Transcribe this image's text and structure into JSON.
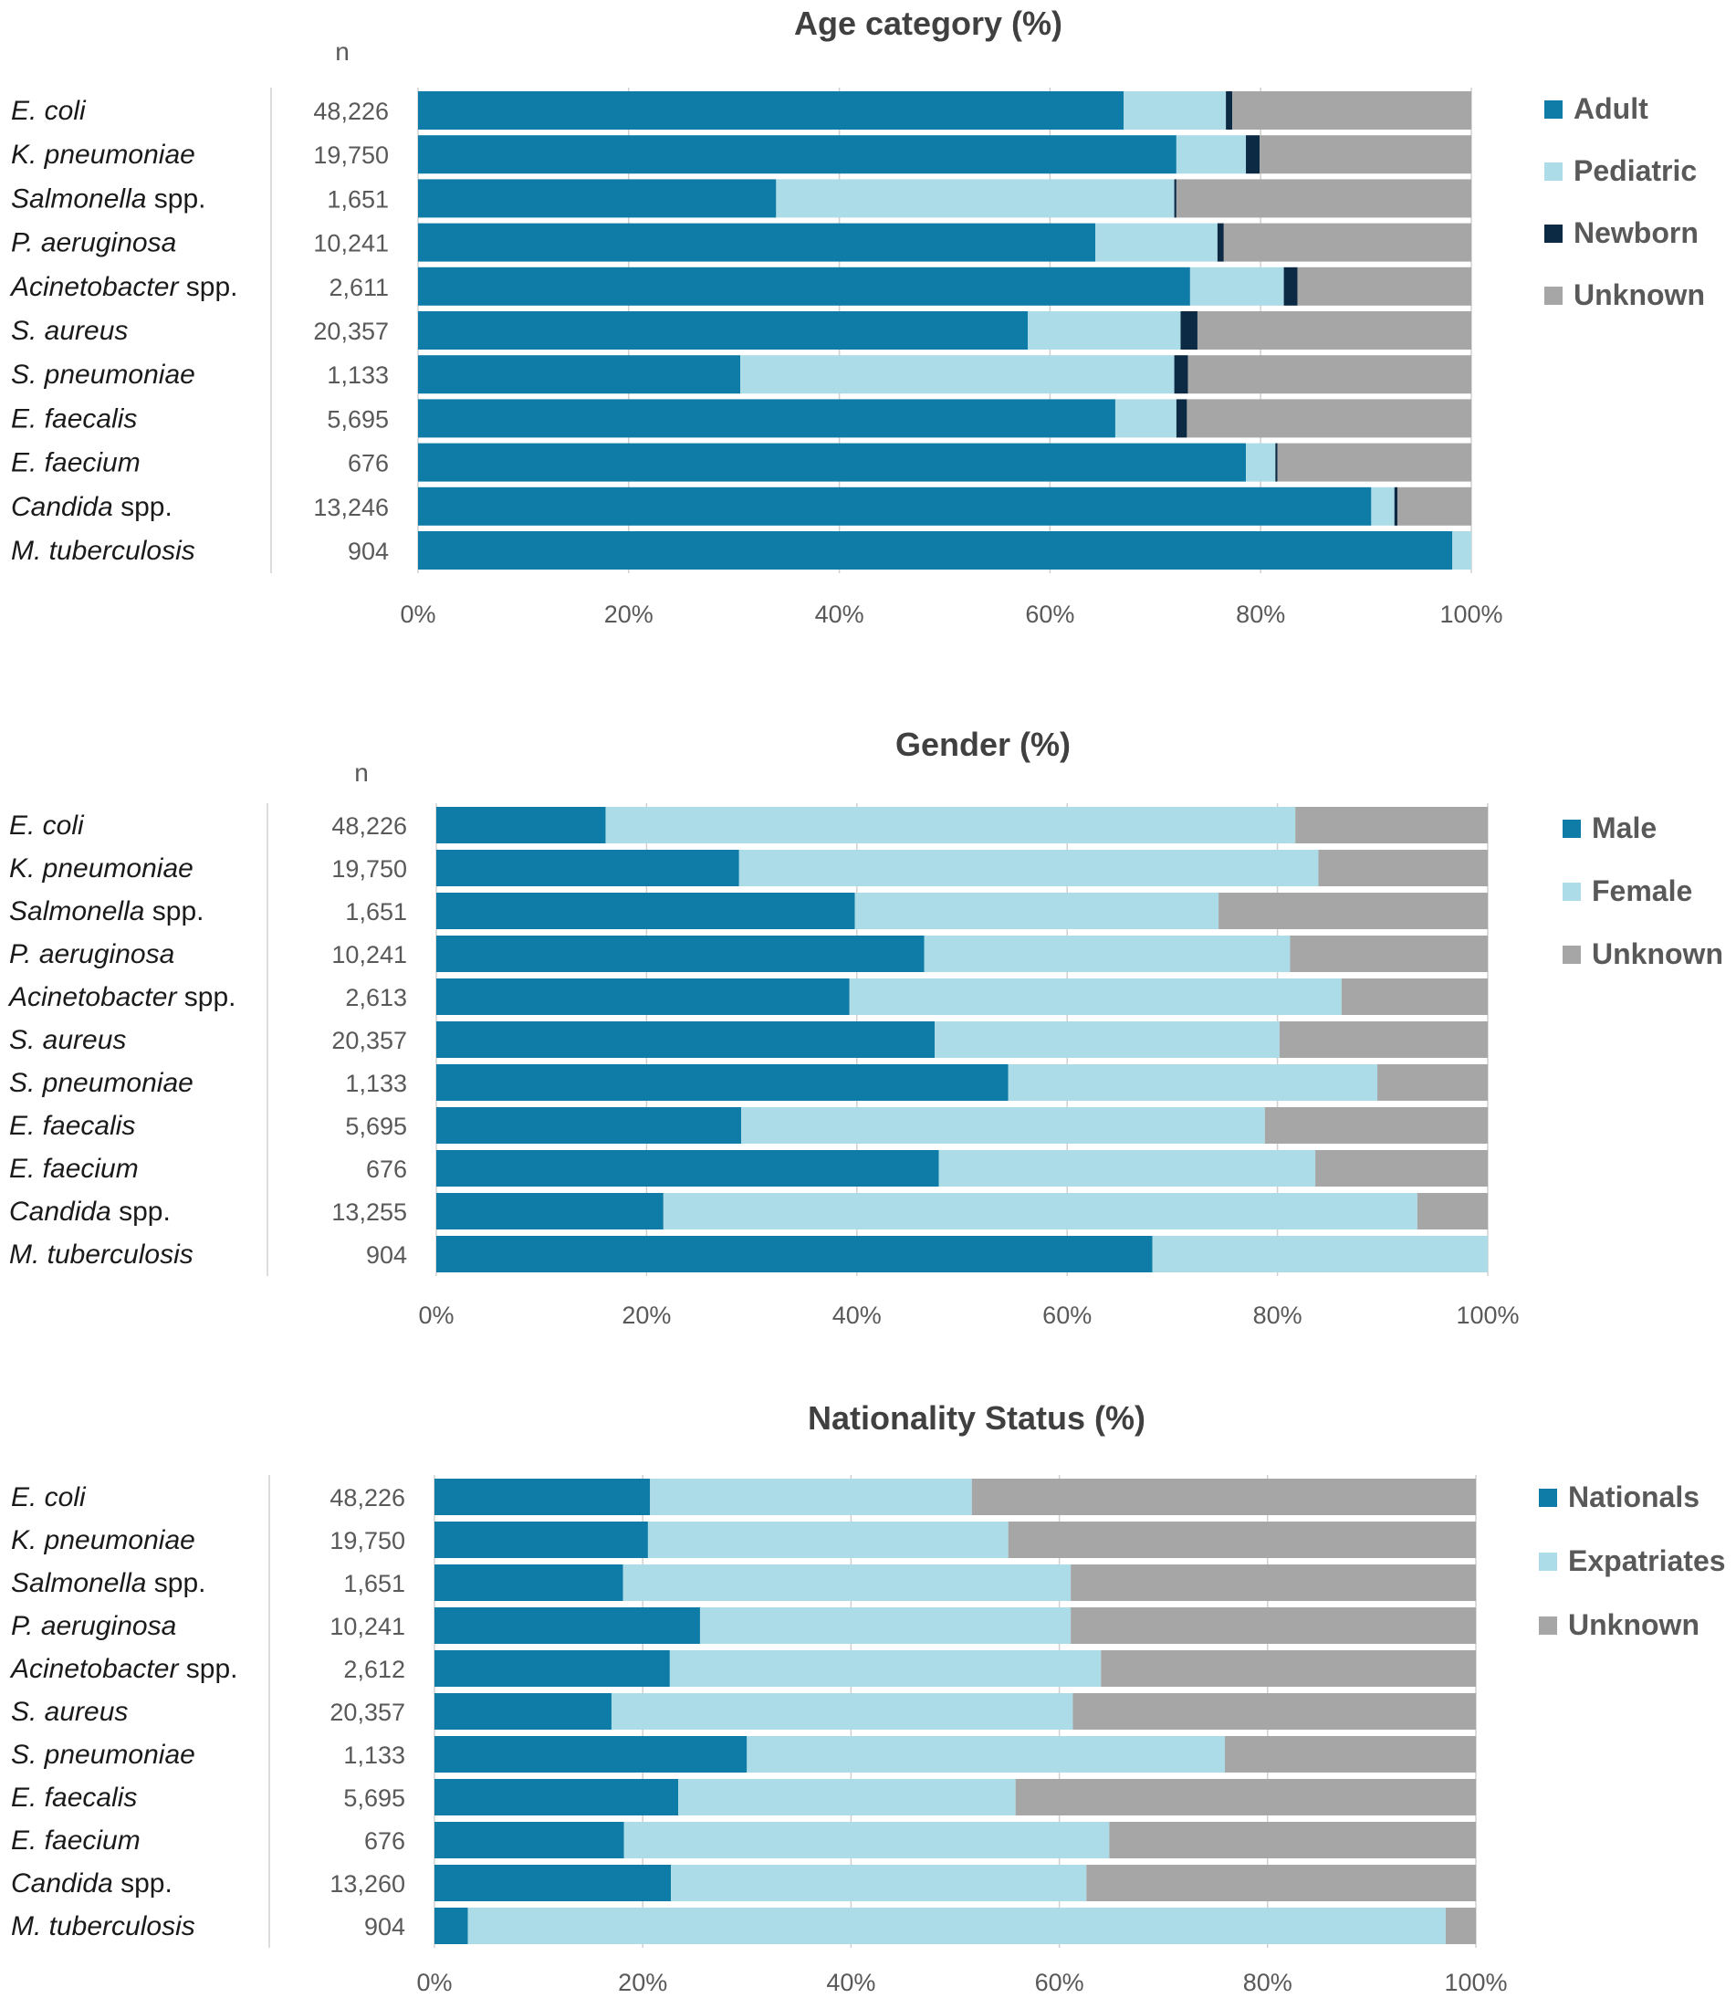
{
  "colors": {
    "dark_blue": "#0e7ca6",
    "light_blue": "#acdce7",
    "navy": "#0d2a45",
    "gray": "#a6a6a6",
    "gridline": "#d0d0d0",
    "axis_text": "#595959",
    "title_text": "#404040",
    "label_text": "#1a1a1a"
  },
  "chart_data": [
    {
      "type": "bar",
      "orientation": "horizontal",
      "stacked": "percent",
      "title": "Age category (%)",
      "n_header": "n",
      "categories": [
        {
          "pre": "E. coli",
          "post": ""
        },
        {
          "pre": "K. pneumoniae",
          "post": ""
        },
        {
          "pre": "Salmonella",
          "post": " spp."
        },
        {
          "pre": "P. aeruginosa",
          "post": ""
        },
        {
          "pre": "Acinetobacter",
          "post": " spp."
        },
        {
          "pre": "S. aureus",
          "post": ""
        },
        {
          "pre": "S. pneumoniae",
          "post": ""
        },
        {
          "pre": "E. faecalis",
          "post": ""
        },
        {
          "pre": "E. faecium",
          "post": ""
        },
        {
          "pre": "Candida",
          "post": " spp."
        },
        {
          "pre": "M. tuberculosis",
          "post": ""
        }
      ],
      "n": [
        "48,226",
        "19,750",
        "1,651",
        "10,241",
        "2,611",
        "20,357",
        "1,133",
        "5,695",
        "676",
        "13,246",
        "904"
      ],
      "series": [
        {
          "name": "Adult",
          "color_key": "dark_blue",
          "values": [
            67.0,
            72.0,
            34.0,
            64.3,
            73.3,
            57.9,
            30.6,
            66.2,
            78.6,
            90.5,
            98.2
          ]
        },
        {
          "name": "Pediatric",
          "color_key": "light_blue",
          "values": [
            9.7,
            6.6,
            37.8,
            11.6,
            8.9,
            14.5,
            41.2,
            5.8,
            2.8,
            2.2,
            1.8
          ]
        },
        {
          "name": "Newborn",
          "color_key": "navy",
          "values": [
            0.6,
            1.3,
            0.2,
            0.6,
            1.3,
            1.6,
            1.3,
            1.0,
            0.2,
            0.3,
            0.0
          ]
        },
        {
          "name": "Unknown",
          "color_key": "gray",
          "values": [
            22.7,
            20.1,
            28.0,
            23.5,
            16.5,
            26.0,
            26.9,
            27.0,
            18.4,
            7.0,
            0.0
          ]
        }
      ],
      "xlim": [
        0,
        100
      ],
      "x_ticks": [
        "0%",
        "20%",
        "40%",
        "60%",
        "80%",
        "100%"
      ],
      "legend": "right"
    },
    {
      "type": "bar",
      "orientation": "horizontal",
      "stacked": "percent",
      "title": "Gender (%)",
      "n_header": "n",
      "categories": [
        {
          "pre": "E. coli",
          "post": ""
        },
        {
          "pre": "K. pneumoniae",
          "post": ""
        },
        {
          "pre": "Salmonella",
          "post": " spp."
        },
        {
          "pre": "P. aeruginosa",
          "post": ""
        },
        {
          "pre": "Acinetobacter",
          "post": " spp."
        },
        {
          "pre": "S. aureus",
          "post": ""
        },
        {
          "pre": "S. pneumoniae",
          "post": ""
        },
        {
          "pre": "E. faecalis",
          "post": ""
        },
        {
          "pre": "E. faecium",
          "post": ""
        },
        {
          "pre": "Candida",
          "post": " spp."
        },
        {
          "pre": "M. tuberculosis",
          "post": ""
        }
      ],
      "n": [
        "48,226",
        "19,750",
        "1,651",
        "10,241",
        "2,613",
        "20,357",
        "1,133",
        "5,695",
        "676",
        "13,255",
        "904"
      ],
      "series": [
        {
          "name": "Male",
          "color_key": "dark_blue",
          "values": [
            16.1,
            28.8,
            39.8,
            46.4,
            39.3,
            47.4,
            54.4,
            29.0,
            47.8,
            21.6,
            68.1
          ]
        },
        {
          "name": "Female",
          "color_key": "light_blue",
          "values": [
            65.6,
            55.1,
            34.6,
            34.8,
            46.8,
            32.8,
            35.1,
            49.8,
            35.8,
            71.7,
            31.9
          ]
        },
        {
          "name": "Unknown",
          "color_key": "gray",
          "values": [
            18.3,
            16.1,
            25.6,
            18.8,
            13.9,
            19.8,
            10.5,
            21.2,
            16.4,
            6.7,
            0.0
          ]
        }
      ],
      "xlim": [
        0,
        100
      ],
      "x_ticks": [
        "0%",
        "20%",
        "40%",
        "60%",
        "80%",
        "100%"
      ],
      "legend": "right"
    },
    {
      "type": "bar",
      "orientation": "horizontal",
      "stacked": "percent",
      "title": "Nationality Status (%)",
      "n_header": "",
      "categories": [
        {
          "pre": "E. coli",
          "post": ""
        },
        {
          "pre": "K. pneumoniae",
          "post": ""
        },
        {
          "pre": "Salmonella",
          "post": " spp."
        },
        {
          "pre": "P. aeruginosa",
          "post": ""
        },
        {
          "pre": "Acinetobacter",
          "post": " spp."
        },
        {
          "pre": "S. aureus",
          "post": ""
        },
        {
          "pre": "S. pneumoniae",
          "post": ""
        },
        {
          "pre": "E. faecalis",
          "post": ""
        },
        {
          "pre": "E. faecium",
          "post": ""
        },
        {
          "pre": "Candida",
          "post": " spp."
        },
        {
          "pre": "M. tuberculosis",
          "post": ""
        }
      ],
      "n": [
        "48,226",
        "19,750",
        "1,651",
        "10,241",
        "2,612",
        "20,357",
        "1,133",
        "5,695",
        "676",
        "13,260",
        "904"
      ],
      "series": [
        {
          "name": "Nationals",
          "color_key": "dark_blue",
          "values": [
            20.7,
            20.5,
            18.1,
            25.5,
            22.6,
            17.0,
            30.0,
            23.4,
            18.2,
            22.7,
            3.2
          ]
        },
        {
          "name": "Expatriates",
          "color_key": "light_blue",
          "values": [
            30.9,
            34.6,
            43.0,
            35.6,
            41.4,
            44.3,
            45.9,
            32.4,
            46.6,
            39.9,
            93.9
          ]
        },
        {
          "name": "Unknown",
          "color_key": "gray",
          "values": [
            48.4,
            44.9,
            38.9,
            38.9,
            36.0,
            38.7,
            24.1,
            44.2,
            35.2,
            37.4,
            2.9
          ]
        }
      ],
      "xlim": [
        0,
        100
      ],
      "x_ticks": [
        "0%",
        "20%",
        "40%",
        "60%",
        "80%",
        "100%"
      ],
      "legend": "right"
    }
  ]
}
